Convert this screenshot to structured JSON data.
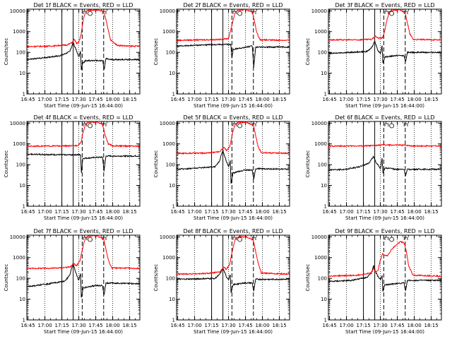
{
  "chart_data": {
    "type": "line",
    "yscale": "log",
    "ylim": [
      1,
      12000
    ],
    "y_ticks": [
      {
        "v": 1,
        "label": "1"
      },
      {
        "v": 10,
        "label": "10"
      },
      {
        "v": 100,
        "label": "100"
      },
      {
        "v": 1000,
        "label": "1000"
      },
      {
        "v": 10000,
        "label": "10000"
      }
    ],
    "x_range": [
      "16:44",
      "18:24"
    ],
    "x_tick_labels": [
      "16:45",
      "17:00",
      "17:15",
      "17:30",
      "17:45",
      "18:00",
      "18:15"
    ],
    "x_ticks_min": [
      1,
      16,
      31,
      46,
      61,
      76,
      91
    ],
    "dotted_lines_min": [
      1,
      16,
      31,
      46,
      61,
      76,
      91
    ],
    "solid_lines_min": [
      31,
      41
    ],
    "dashed_lines_min": [
      49,
      68
    ],
    "ylabel": "Counts/sec",
    "xlabel": "Start Time (09-Jun-15 16:44:00)",
    "series": [
      {
        "name": "BLACK = Events",
        "color": "#000000"
      },
      {
        "name": "RED = LLD",
        "color": "#ff0000"
      }
    ],
    "panels": [
      {
        "title": "Det 1f BLACK = Events, RED = LLD",
        "red": [
          [
            0,
            190
          ],
          [
            20,
            200
          ],
          [
            36,
            230
          ],
          [
            40,
            300
          ],
          [
            42,
            430
          ],
          [
            44,
            260
          ],
          [
            46,
            320
          ],
          [
            48,
            700
          ],
          [
            50,
            4000
          ],
          [
            52,
            9000
          ],
          [
            55,
            11000
          ],
          [
            62,
            11000
          ],
          [
            68,
            9000
          ],
          [
            70,
            4000
          ],
          [
            72,
            1200
          ],
          [
            74,
            400
          ],
          [
            80,
            220
          ],
          [
            90,
            200
          ],
          [
            100,
            200
          ]
        ],
        "black": [
          [
            0,
            45
          ],
          [
            15,
            55
          ],
          [
            30,
            70
          ],
          [
            38,
            110
          ],
          [
            41,
            300
          ],
          [
            42.5,
            180
          ],
          [
            44,
            120
          ],
          [
            46,
            60
          ],
          [
            47.5,
            110
          ],
          [
            48.2,
            14
          ],
          [
            49.5,
            30
          ],
          [
            52,
            40
          ],
          [
            62,
            40
          ],
          [
            67,
            40
          ],
          [
            68.5,
            15
          ],
          [
            70,
            50
          ],
          [
            74,
            45
          ],
          [
            100,
            45
          ]
        ]
      },
      {
        "title": "Det 2f BLACK = Events, RED = LLD",
        "red": [
          [
            0,
            380
          ],
          [
            20,
            400
          ],
          [
            36,
            410
          ],
          [
            40,
            430
          ],
          [
            46,
            460
          ],
          [
            50,
            3500
          ],
          [
            52,
            9000
          ],
          [
            55,
            11000
          ],
          [
            62,
            11000
          ],
          [
            67,
            9000
          ],
          [
            69,
            3000
          ],
          [
            71,
            900
          ],
          [
            74,
            400
          ],
          [
            100,
            380
          ]
        ],
        "black": [
          [
            0,
            200
          ],
          [
            25,
            230
          ],
          [
            40,
            240
          ],
          [
            48,
            240
          ],
          [
            49,
            50
          ],
          [
            50,
            140
          ],
          [
            67,
            200
          ],
          [
            68.3,
            20
          ],
          [
            70,
            180
          ],
          [
            100,
            180
          ]
        ]
      },
      {
        "title": "Det 3f BLACK = Events, RED = LLD",
        "red": [
          [
            0,
            400
          ],
          [
            25,
            400
          ],
          [
            38,
            420
          ],
          [
            42,
            600
          ],
          [
            44,
            480
          ],
          [
            48,
            500
          ],
          [
            50,
            1200
          ],
          [
            52,
            4000
          ],
          [
            54,
            9000
          ],
          [
            58,
            11000
          ],
          [
            64,
            11000
          ],
          [
            68,
            8000
          ],
          [
            70,
            2500
          ],
          [
            72,
            800
          ],
          [
            75,
            420
          ],
          [
            100,
            400
          ]
        ],
        "black": [
          [
            0,
            90
          ],
          [
            20,
            100
          ],
          [
            34,
            110
          ],
          [
            38,
            160
          ],
          [
            41,
            350
          ],
          [
            42.5,
            200
          ],
          [
            44,
            120
          ],
          [
            46,
            90
          ],
          [
            47.5,
            200
          ],
          [
            48.2,
            30
          ],
          [
            50,
            60
          ],
          [
            60,
            70
          ],
          [
            67,
            70
          ],
          [
            68.3,
            35
          ],
          [
            70,
            100
          ],
          [
            100,
            100
          ]
        ]
      },
      {
        "title": "Det 4f BLACK = Events, RED = LLD",
        "red": [
          [
            0,
            780
          ],
          [
            25,
            790
          ],
          [
            40,
            800
          ],
          [
            45,
            850
          ],
          [
            48,
            1200
          ],
          [
            50,
            4000
          ],
          [
            52,
            9000
          ],
          [
            55,
            11000
          ],
          [
            62,
            11000
          ],
          [
            67,
            9000
          ],
          [
            69,
            3000
          ],
          [
            72,
            1000
          ],
          [
            76,
            800
          ],
          [
            100,
            780
          ]
        ],
        "black": [
          [
            0,
            320
          ],
          [
            30,
            300
          ],
          [
            44,
            300
          ],
          [
            47.5,
            300
          ],
          [
            48.3,
            40
          ],
          [
            49.5,
            200
          ],
          [
            60,
            220
          ],
          [
            67,
            230
          ],
          [
            68.3,
            50
          ],
          [
            70,
            260
          ],
          [
            100,
            260
          ]
        ]
      },
      {
        "title": "Det 5f BLACK = Events, RED = LLD",
        "red": [
          [
            0,
            350
          ],
          [
            25,
            360
          ],
          [
            38,
            420
          ],
          [
            42,
            700
          ],
          [
            44,
            500
          ],
          [
            47,
            700
          ],
          [
            50,
            4000
          ],
          [
            52,
            9000
          ],
          [
            55,
            11000
          ],
          [
            62,
            11000
          ],
          [
            68,
            8000
          ],
          [
            70,
            2500
          ],
          [
            72,
            800
          ],
          [
            75,
            380
          ],
          [
            100,
            350
          ]
        ],
        "black": [
          [
            0,
            60
          ],
          [
            20,
            70
          ],
          [
            34,
            80
          ],
          [
            38,
            150
          ],
          [
            41,
            500
          ],
          [
            42.5,
            260
          ],
          [
            44,
            150
          ],
          [
            46,
            80
          ],
          [
            47.5,
            150
          ],
          [
            48.2,
            12
          ],
          [
            50,
            40
          ],
          [
            60,
            55
          ],
          [
            67,
            55
          ],
          [
            68.3,
            20
          ],
          [
            70,
            65
          ],
          [
            100,
            60
          ]
        ]
      },
      {
        "title": "Det 6f BLACK = Events, RED = LLD",
        "red": [
          [
            0,
            780
          ],
          [
            30,
            800
          ],
          [
            40,
            820
          ],
          [
            44,
            860
          ],
          [
            48,
            900
          ],
          [
            52,
            880
          ],
          [
            68,
            870
          ],
          [
            70,
            850
          ],
          [
            75,
            800
          ],
          [
            100,
            790
          ]
        ],
        "black": [
          [
            0,
            55
          ],
          [
            15,
            60
          ],
          [
            28,
            80
          ],
          [
            36,
            120
          ],
          [
            40,
            250
          ],
          [
            42,
            130
          ],
          [
            44,
            100
          ],
          [
            46,
            60
          ],
          [
            47.5,
            200
          ],
          [
            48.3,
            40
          ],
          [
            50,
            70
          ],
          [
            60,
            60
          ],
          [
            67,
            60
          ],
          [
            68.3,
            30
          ],
          [
            70,
            60
          ],
          [
            100,
            60
          ]
        ]
      },
      {
        "title": "Det 7f BLACK = Events, RED = LLD",
        "red": [
          [
            0,
            300
          ],
          [
            25,
            310
          ],
          [
            38,
            350
          ],
          [
            42,
            500
          ],
          [
            44,
            400
          ],
          [
            47,
            700
          ],
          [
            50,
            4000
          ],
          [
            52,
            9000
          ],
          [
            55,
            11000
          ],
          [
            62,
            11000
          ],
          [
            68,
            8000
          ],
          [
            70,
            2500
          ],
          [
            72,
            800
          ],
          [
            75,
            320
          ],
          [
            100,
            300
          ]
        ],
        "black": [
          [
            0,
            40
          ],
          [
            20,
            55
          ],
          [
            34,
            75
          ],
          [
            38,
            150
          ],
          [
            41,
            550
          ],
          [
            42.5,
            260
          ],
          [
            44,
            150
          ],
          [
            46,
            80
          ],
          [
            47.5,
            180
          ],
          [
            48.2,
            12
          ],
          [
            50,
            35
          ],
          [
            60,
            45
          ],
          [
            67,
            45
          ],
          [
            68.3,
            15
          ],
          [
            70,
            60
          ],
          [
            100,
            55
          ]
        ]
      },
      {
        "title": "Det 8f BLACK = Events, RED = LLD",
        "red": [
          [
            0,
            160
          ],
          [
            25,
            170
          ],
          [
            38,
            200
          ],
          [
            42,
            350
          ],
          [
            44,
            260
          ],
          [
            47,
            500
          ],
          [
            50,
            3000
          ],
          [
            52,
            8000
          ],
          [
            55,
            10000
          ],
          [
            62,
            10000
          ],
          [
            68,
            7000
          ],
          [
            70,
            2000
          ],
          [
            72,
            600
          ],
          [
            75,
            180
          ],
          [
            100,
            160
          ]
        ],
        "black": [
          [
            0,
            90
          ],
          [
            20,
            95
          ],
          [
            34,
            100
          ],
          [
            38,
            150
          ],
          [
            41,
            300
          ],
          [
            42.5,
            200
          ],
          [
            44,
            120
          ],
          [
            46,
            90
          ],
          [
            47.5,
            150
          ],
          [
            48.2,
            20
          ],
          [
            50,
            50
          ],
          [
            60,
            60
          ],
          [
            67,
            60
          ],
          [
            68.3,
            25
          ],
          [
            70,
            90
          ],
          [
            100,
            90
          ]
        ]
      },
      {
        "title": "Det 9f BLACK = Events, RED = LLD",
        "red": [
          [
            0,
            130
          ],
          [
            25,
            140
          ],
          [
            38,
            180
          ],
          [
            40,
            300
          ],
          [
            42,
            200
          ],
          [
            44,
            240
          ],
          [
            46,
            800
          ],
          [
            48,
            1500
          ],
          [
            52,
            1200
          ],
          [
            56,
            2500
          ],
          [
            60,
            4000
          ],
          [
            64,
            6000
          ],
          [
            67,
            5000
          ],
          [
            69,
            2000
          ],
          [
            71,
            400
          ],
          [
            75,
            140
          ],
          [
            100,
            130
          ]
        ],
        "black": [
          [
            0,
            70
          ],
          [
            20,
            80
          ],
          [
            34,
            110
          ],
          [
            38,
            180
          ],
          [
            40,
            400
          ],
          [
            42,
            200
          ],
          [
            44,
            120
          ],
          [
            46,
            90
          ],
          [
            47.5,
            130
          ],
          [
            48.2,
            25
          ],
          [
            50,
            50
          ],
          [
            60,
            55
          ],
          [
            67,
            60
          ],
          [
            68.3,
            25
          ],
          [
            70,
            80
          ],
          [
            100,
            80
          ]
        ]
      }
    ]
  }
}
